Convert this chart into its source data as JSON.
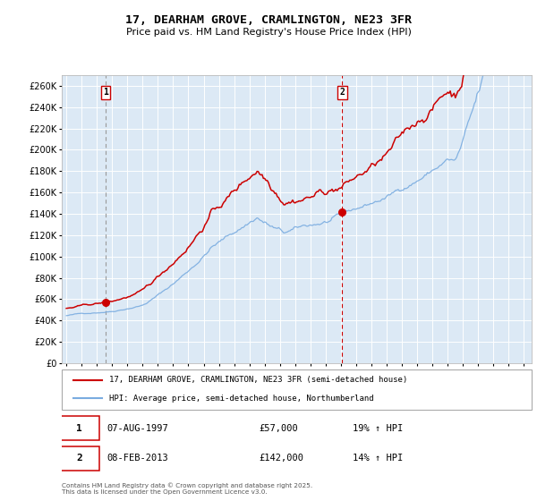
{
  "title": "17, DEARHAM GROVE, CRAMLINGTON, NE23 3FR",
  "subtitle": "Price paid vs. HM Land Registry's House Price Index (HPI)",
  "legend_line1": "17, DEARHAM GROVE, CRAMLINGTON, NE23 3FR (semi-detached house)",
  "legend_line2": "HPI: Average price, semi-detached house, Northumberland",
  "sale1_date": "07-AUG-1997",
  "sale1_price": "£57,000",
  "sale1_hpi": "19% ↑ HPI",
  "sale2_date": "08-FEB-2013",
  "sale2_price": "£142,000",
  "sale2_hpi": "14% ↑ HPI",
  "sale1_year": 1997.58,
  "sale1_value": 57000,
  "sale2_year": 2013.08,
  "sale2_value": 142000,
  "ylim": [
    0,
    270000
  ],
  "xlim_start": 1994.7,
  "xlim_end": 2025.5,
  "background_color": "#dce9f5",
  "red_line_color": "#cc0000",
  "blue_line_color": "#7aace0",
  "footer": "Contains HM Land Registry data © Crown copyright and database right 2025.\nThis data is licensed under the Open Government Licence v3.0.",
  "ytick_labels": [
    "£0",
    "£20K",
    "£40K",
    "£60K",
    "£80K",
    "£100K",
    "£120K",
    "£140K",
    "£160K",
    "£180K",
    "£200K",
    "£220K",
    "£240K",
    "£260K"
  ],
  "ytick_values": [
    0,
    20000,
    40000,
    60000,
    80000,
    100000,
    120000,
    140000,
    160000,
    180000,
    200000,
    220000,
    240000,
    260000
  ]
}
